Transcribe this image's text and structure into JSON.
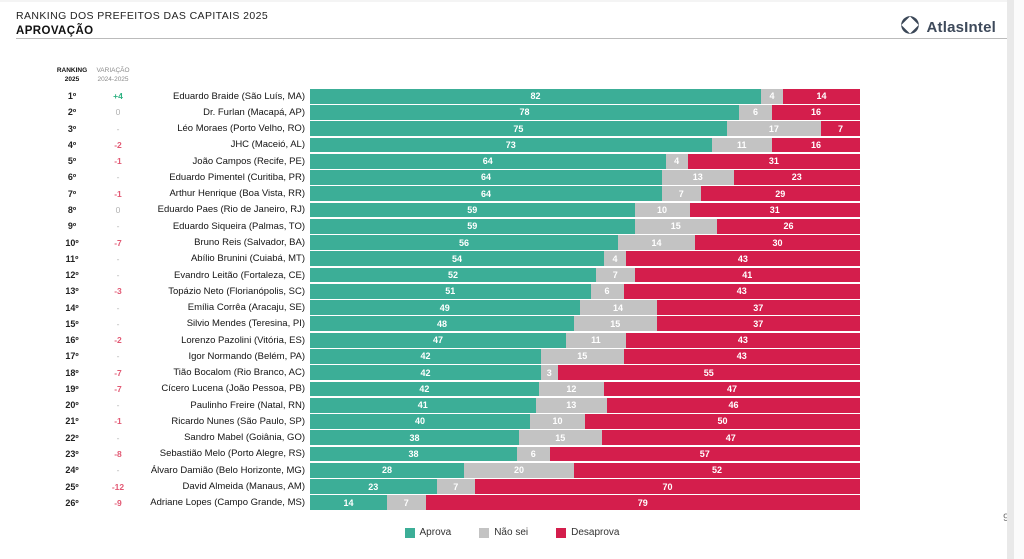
{
  "header": {
    "title_line1": "RANKING DOS PREFEITOS DAS CAPITAIS 2025",
    "title_line2": "APROVAÇÃO"
  },
  "logo": {
    "text": "AtlasIntel",
    "color": "#3E4A5B"
  },
  "columns": {
    "ranking_line1": "RANKING",
    "ranking_line2": "2025",
    "variacao_line1": "VARIAÇÃO",
    "variacao_line2": "2024-2025"
  },
  "legend": [
    {
      "label": "Aprova",
      "color": "#3CAE97"
    },
    {
      "label": "Não sei",
      "color": "#C3C3C3"
    },
    {
      "label": "Desaprova",
      "color": "#D41E4C"
    }
  ],
  "page_number": "9",
  "chart_data": {
    "type": "bar",
    "orientation": "horizontal",
    "stacked": true,
    "title": "RANKING DOS PREFEITOS DAS CAPITAIS 2025 — APROVAÇÃO",
    "xlim": [
      0,
      100
    ],
    "grid": false,
    "legend_position": "bottom",
    "categories": [
      "Eduardo Braide (São Luís, MA)",
      "Dr. Furlan (Macapá, AP)",
      "Léo Moraes (Porto Velho, RO)",
      "JHC (Maceió, AL)",
      "João Campos (Recife, PE)",
      "Eduardo Pimentel (Curitiba, PR)",
      "Arthur Henrique (Boa Vista, RR)",
      "Eduardo Paes (Rio de Janeiro, RJ)",
      "Eduardo Siqueira (Palmas, TO)",
      "Bruno Reis (Salvador, BA)",
      "Abílio Brunini (Cuiabá, MT)",
      "Evandro Leitão (Fortaleza, CE)",
      "Topázio Neto (Florianópolis, SC)",
      "Emília Corrêa (Aracaju, SE)",
      "Silvio Mendes (Teresina, PI)",
      "Lorenzo Pazolini (Vitória, ES)",
      "Igor Normando (Belém, PA)",
      "Tião Bocalom (Rio Branco, AC)",
      "Cícero Lucena (João Pessoa, PB)",
      "Paulinho Freire (Natal, RN)",
      "Ricardo Nunes (São Paulo, SP)",
      "Sandro Mabel (Goiânia, GO)",
      "Sebastião Melo (Porto Alegre, RS)",
      "Álvaro Damião (Belo Horizonte, MG)",
      "David Almeida (Manaus, AM)",
      "Adriane Lopes (Campo Grande, MS)"
    ],
    "rankings": [
      "1º",
      "2º",
      "3º",
      "4º",
      "5º",
      "6º",
      "7º",
      "8º",
      "9º",
      "10º",
      "11º",
      "12º",
      "13º",
      "14º",
      "15º",
      "16º",
      "17º",
      "18º",
      "19º",
      "20º",
      "21º",
      "22º",
      "23º",
      "24º",
      "25º",
      "26º"
    ],
    "variations": [
      "+4",
      "0",
      "-",
      "-2",
      "-1",
      "-",
      "-1",
      "0",
      "-",
      "-7",
      "-",
      "-",
      "-3",
      "-",
      "-",
      "-2",
      "-",
      "-7",
      "-7",
      "-",
      "-1",
      "-",
      "-8",
      "-",
      "-12",
      "-9"
    ],
    "series": [
      {
        "name": "Aprova",
        "color": "#3CAE97",
        "values": [
          82,
          78,
          75,
          73,
          64,
          64,
          64,
          59,
          59,
          56,
          54,
          52,
          51,
          49,
          48,
          47,
          42,
          42,
          42,
          41,
          40,
          38,
          38,
          28,
          23,
          14
        ]
      },
      {
        "name": "Não sei",
        "color": "#C3C3C3",
        "values": [
          4,
          6,
          17,
          11,
          4,
          13,
          7,
          10,
          15,
          14,
          4,
          7,
          6,
          14,
          15,
          11,
          15,
          3,
          12,
          13,
          10,
          15,
          6,
          20,
          7,
          7
        ]
      },
      {
        "name": "Desaprova",
        "color": "#D41E4C",
        "values": [
          14,
          16,
          7,
          16,
          31,
          23,
          29,
          31,
          26,
          30,
          43,
          41,
          43,
          37,
          37,
          43,
          43,
          55,
          47,
          46,
          50,
          47,
          57,
          52,
          70,
          79
        ]
      }
    ]
  }
}
